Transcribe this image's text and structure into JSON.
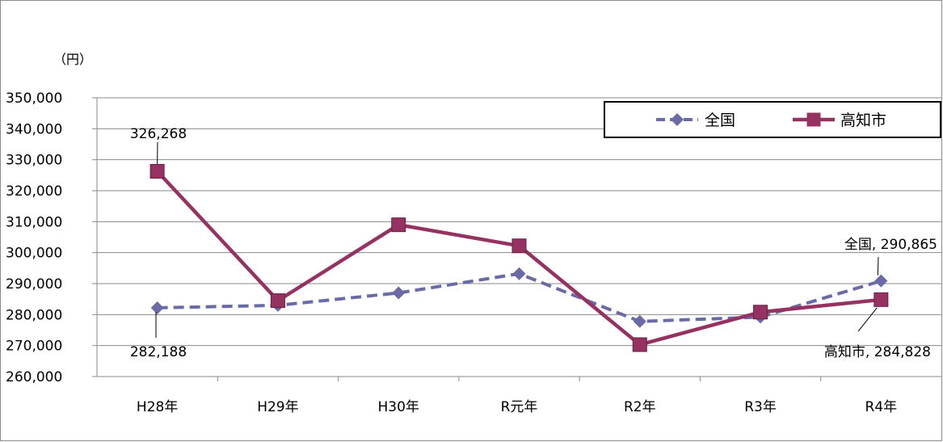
{
  "chart_data": {
    "type": "line",
    "unit_label": "（円）",
    "categories": [
      "H28年",
      "H29年",
      "H30年",
      "R元年",
      "R2年",
      "R3年",
      "R4年"
    ],
    "ylim": [
      260000,
      350000
    ],
    "yticks": [
      "260,000",
      "270,000",
      "280,000",
      "290,000",
      "300,000",
      "310,000",
      "320,000",
      "330,000",
      "340,000",
      "350,000"
    ],
    "grid": true,
    "legend_position": "top-right",
    "series": [
      {
        "name": "全国",
        "color": "#6a6aa6",
        "line_style": "dashed",
        "marker": "diamond",
        "values": [
          282188,
          283000,
          287000,
          293200,
          277800,
          279200,
          290865
        ]
      },
      {
        "name": "高知市",
        "color": "#953262",
        "line_style": "solid",
        "marker": "square",
        "values": [
          326268,
          284500,
          309000,
          302200,
          270300,
          280800,
          284828
        ]
      }
    ],
    "data_labels": [
      {
        "text": "326,268"
      },
      {
        "text": "282,188"
      },
      {
        "text": "全国, 290,865"
      },
      {
        "text": "高知市, 284,828"
      }
    ]
  }
}
